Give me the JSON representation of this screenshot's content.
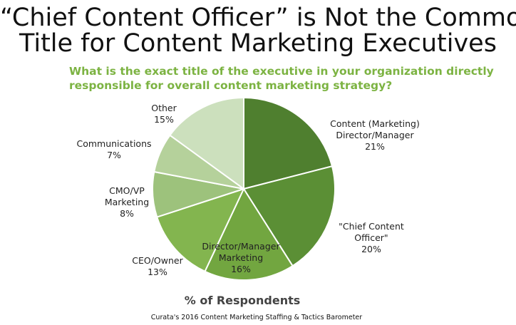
{
  "title_line1": "“Chief Content Officer” is Not the Common",
  "title_line2": "Title for Content Marketing Executives",
  "subtitle": "What is the exact title of the executive in your organization directly responsible for overall content marketing strategy?",
  "caption": "% of Respondents",
  "source": "Curata's 2016 Content Marketing  Staffing & Tactics Barometer",
  "chart_data": {
    "type": "pie",
    "title": "“Chief Content Officer” is Not the Common Title for Content Marketing Executives",
    "xlabel": "% of Respondents",
    "slices": [
      {
        "label_lines": [
          "Content (Marketing)",
          "Director/Manager"
        ],
        "value": 21,
        "value_text": "21%",
        "color": "#4f7f2f"
      },
      {
        "label_lines": [
          "\"Chief Content",
          "Officer\""
        ],
        "value": 20,
        "value_text": "20%",
        "color": "#5b8f35"
      },
      {
        "label_lines": [
          "Director/Manager",
          "Marketing"
        ],
        "value": 16,
        "value_text": "16%",
        "color": "#72a640"
      },
      {
        "label_lines": [
          "CEO/Owner"
        ],
        "value": 13,
        "value_text": "13%",
        "color": "#83b54f"
      },
      {
        "label_lines": [
          "CMO/VP",
          "Marketing"
        ],
        "value": 8,
        "value_text": "8%",
        "color": "#9dc27c"
      },
      {
        "label_lines": [
          "Communications"
        ],
        "value": 7,
        "value_text": "7%",
        "color": "#b5d19b"
      },
      {
        "label_lines": [
          "Other"
        ],
        "value": 15,
        "value_text": "15%",
        "color": "#cce0bd"
      }
    ]
  }
}
